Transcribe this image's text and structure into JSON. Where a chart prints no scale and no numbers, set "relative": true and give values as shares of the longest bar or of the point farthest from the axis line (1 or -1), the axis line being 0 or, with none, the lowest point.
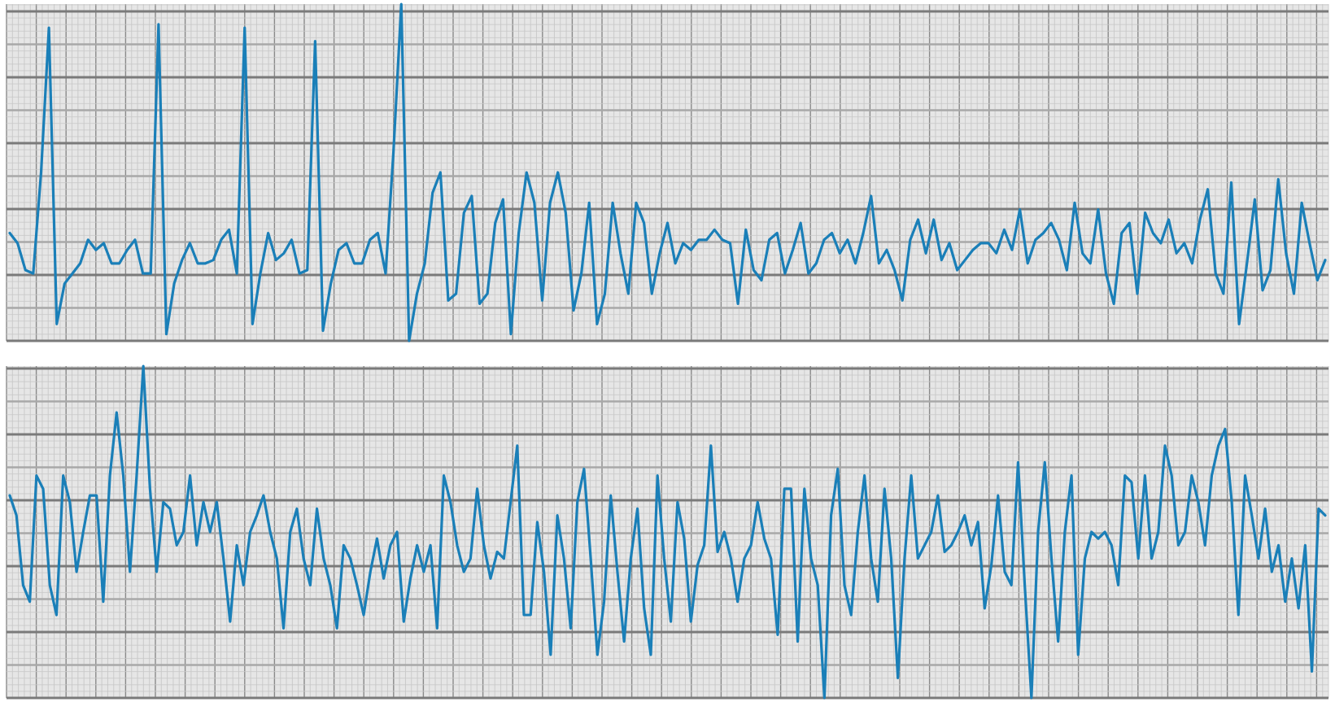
{
  "chart_data": [
    {
      "type": "line",
      "relative": true,
      "grid": true,
      "categories": [
        null,
        null,
        null,
        null,
        null,
        null,
        null,
        null,
        null,
        null,
        null,
        null,
        null,
        null,
        null,
        null,
        null,
        null,
        null,
        null,
        null,
        null,
        null,
        null,
        null,
        null,
        null,
        null,
        null,
        null,
        null,
        null,
        null,
        null,
        null,
        null,
        null,
        null,
        null,
        null,
        null,
        null,
        null,
        null,
        null,
        null,
        null,
        null,
        null,
        null,
        null,
        null,
        null,
        null,
        null,
        null,
        null,
        null,
        null,
        null,
        null,
        null,
        null,
        null,
        null,
        null,
        null,
        null,
        null,
        null,
        null,
        null,
        null,
        null,
        null,
        null,
        null,
        null,
        null,
        null,
        null,
        null,
        null,
        null,
        null,
        null,
        null,
        null,
        null,
        null,
        null,
        null,
        null,
        null,
        null,
        null,
        null,
        null,
        null,
        null,
        null,
        null,
        null,
        null,
        null,
        null,
        null,
        null,
        null,
        null,
        null,
        null,
        null,
        null,
        null,
        null,
        null,
        null,
        null,
        null,
        null,
        null,
        null,
        null,
        null,
        null,
        null,
        null,
        null,
        null,
        null,
        null,
        null,
        null,
        null,
        null,
        null,
        null,
        null,
        null,
        null,
        null,
        null,
        null,
        null,
        null,
        null,
        null,
        null,
        null,
        null,
        null,
        null,
        null,
        null,
        null,
        null,
        null,
        null,
        null,
        null,
        null,
        null,
        null,
        null,
        null,
        null,
        null,
        null
      ],
      "series": [
        {
          "color": "#1a7fb8",
          "values": [
            0.32,
            0.29,
            0.21,
            0.2,
            0.5,
            0.93,
            0.05,
            0.17,
            0.2,
            0.23,
            0.3,
            0.27,
            0.29,
            0.23,
            0.23,
            0.27,
            0.3,
            0.2,
            0.2,
            0.94,
            0.02,
            0.17,
            0.24,
            0.29,
            0.23,
            0.23,
            0.24,
            0.3,
            0.33,
            0.2,
            0.93,
            0.05,
            0.2,
            0.32,
            0.24,
            0.26,
            0.3,
            0.2,
            0.21,
            0.89,
            0.03,
            0.17,
            0.27,
            0.29,
            0.23,
            0.23,
            0.3,
            0.32,
            0.2,
            0.56,
            1,
            0,
            0.14,
            0.23,
            0.44,
            0.5,
            0.12,
            0.14,
            0.38,
            0.43,
            0.11,
            0.14,
            0.35,
            0.42,
            0.02,
            0.32,
            0.5,
            0.41,
            0.12,
            0.41,
            0.5,
            0.38,
            0.09,
            0.2,
            0.41,
            0.05,
            0.14,
            0.41,
            0.26,
            0.14,
            0.41,
            0.35,
            0.14,
            0.26,
            0.35,
            0.23,
            0.29,
            0.27,
            0.3,
            0.3,
            0.33,
            0.3,
            0.29,
            0.11,
            0.33,
            0.21,
            0.18,
            0.3,
            0.32,
            0.2,
            0.27,
            0.35,
            0.2,
            0.23,
            0.3,
            0.32,
            0.26,
            0.3,
            0.23,
            0.32,
            0.43,
            0.23,
            0.27,
            0.21,
            0.12,
            0.3,
            0.36,
            0.26,
            0.36,
            0.24,
            0.29,
            0.21,
            0.24,
            0.27,
            0.29,
            0.29,
            0.26,
            0.33,
            0.27,
            0.39,
            0.23,
            0.3,
            0.32,
            0.35,
            0.3,
            0.21,
            0.41,
            0.26,
            0.23,
            0.39,
            0.2,
            0.11,
            0.32,
            0.35,
            0.14,
            0.38,
            0.32,
            0.29,
            0.36,
            0.26,
            0.29,
            0.23,
            0.36,
            0.45,
            0.2,
            0.14,
            0.47,
            0.05,
            0.23,
            0.42,
            0.15,
            0.21,
            0.48,
            0.26,
            0.14,
            0.41,
            0.29,
            0.18,
            0.24
          ]
        }
      ]
    },
    {
      "type": "line",
      "relative": true,
      "grid": true,
      "categories": [
        null,
        null,
        null,
        null,
        null,
        null,
        null,
        null,
        null,
        null,
        null,
        null,
        null,
        null,
        null,
        null,
        null,
        null,
        null,
        null,
        null,
        null,
        null,
        null,
        null,
        null,
        null,
        null,
        null,
        null,
        null,
        null,
        null,
        null,
        null,
        null,
        null,
        null,
        null,
        null,
        null,
        null,
        null,
        null,
        null,
        null,
        null,
        null,
        null,
        null,
        null,
        null,
        null,
        null,
        null,
        null,
        null,
        null,
        null,
        null,
        null,
        null,
        null,
        null,
        null,
        null,
        null,
        null,
        null,
        null,
        null,
        null,
        null,
        null,
        null,
        null,
        null,
        null,
        null,
        null,
        null,
        null,
        null,
        null,
        null,
        null,
        null,
        null,
        null,
        null,
        null,
        null,
        null,
        null,
        null,
        null,
        null,
        null,
        null,
        null,
        null,
        null,
        null,
        null,
        null,
        null,
        null,
        null,
        null,
        null,
        null,
        null,
        null,
        null,
        null,
        null,
        null,
        null,
        null,
        null,
        null,
        null,
        null,
        null,
        null,
        null,
        null,
        null,
        null,
        null,
        null,
        null,
        null,
        null,
        null,
        null,
        null,
        null,
        null,
        null,
        null,
        null,
        null,
        null,
        null,
        null,
        null,
        null,
        null,
        null,
        null,
        null,
        null,
        null,
        null,
        null,
        null,
        null,
        null,
        null,
        null,
        null,
        null,
        null,
        null,
        null,
        null,
        null,
        null,
        null,
        null,
        null,
        null,
        null,
        null,
        null,
        null,
        null,
        null,
        null,
        null,
        null,
        null,
        null,
        null,
        null,
        null,
        null,
        null,
        null,
        null,
        null,
        null,
        null,
        null,
        null,
        null,
        null
      ],
      "series": [
        {
          "color": "#1a7fb8",
          "values": [
            0.61,
            0.55,
            0.34,
            0.29,
            0.67,
            0.63,
            0.34,
            0.25,
            0.67,
            0.59,
            0.38,
            0.5,
            0.61,
            0.61,
            0.29,
            0.67,
            0.86,
            0.67,
            0.38,
            0.67,
            1,
            0.63,
            0.38,
            0.59,
            0.57,
            0.46,
            0.5,
            0.67,
            0.46,
            0.59,
            0.5,
            0.59,
            0.42,
            0.23,
            0.46,
            0.34,
            0.5,
            0.55,
            0.61,
            0.5,
            0.42,
            0.21,
            0.5,
            0.57,
            0.42,
            0.34,
            0.57,
            0.42,
            0.34,
            0.21,
            0.46,
            0.42,
            0.34,
            0.25,
            0.38,
            0.48,
            0.36,
            0.46,
            0.5,
            0.23,
            0.36,
            0.46,
            0.38,
            0.46,
            0.21,
            0.67,
            0.59,
            0.46,
            0.38,
            0.42,
            0.63,
            0.46,
            0.36,
            0.44,
            0.42,
            0.59,
            0.76,
            0.25,
            0.25,
            0.53,
            0.38,
            0.13,
            0.55,
            0.42,
            0.21,
            0.59,
            0.69,
            0.42,
            0.13,
            0.29,
            0.61,
            0.38,
            0.17,
            0.42,
            0.57,
            0.27,
            0.13,
            0.67,
            0.42,
            0.23,
            0.59,
            0.48,
            0.23,
            0.4,
            0.46,
            0.76,
            0.44,
            0.5,
            0.42,
            0.29,
            0.42,
            0.46,
            0.59,
            0.48,
            0.42,
            0.19,
            0.63,
            0.63,
            0.17,
            0.63,
            0.42,
            0.34,
            0,
            0.55,
            0.69,
            0.34,
            0.25,
            0.5,
            0.67,
            0.42,
            0.29,
            0.63,
            0.42,
            0.06,
            0.42,
            0.67,
            0.42,
            0.46,
            0.5,
            0.61,
            0.44,
            0.46,
            0.5,
            0.55,
            0.46,
            0.53,
            0.27,
            0.4,
            0.61,
            0.38,
            0.34,
            0.71,
            0.34,
            0,
            0.5,
            0.71,
            0.42,
            0.17,
            0.5,
            0.67,
            0.13,
            0.42,
            0.5,
            0.48,
            0.5,
            0.46,
            0.34,
            0.67,
            0.65,
            0.42,
            0.67,
            0.42,
            0.5,
            0.76,
            0.67,
            0.46,
            0.5,
            0.67,
            0.59,
            0.46,
            0.67,
            0.76,
            0.81,
            0.59,
            0.25,
            0.67,
            0.55,
            0.42,
            0.57,
            0.38,
            0.46,
            0.29,
            0.42,
            0.27,
            0.46,
            0.08,
            0.57,
            0.55
          ]
        }
      ]
    }
  ]
}
